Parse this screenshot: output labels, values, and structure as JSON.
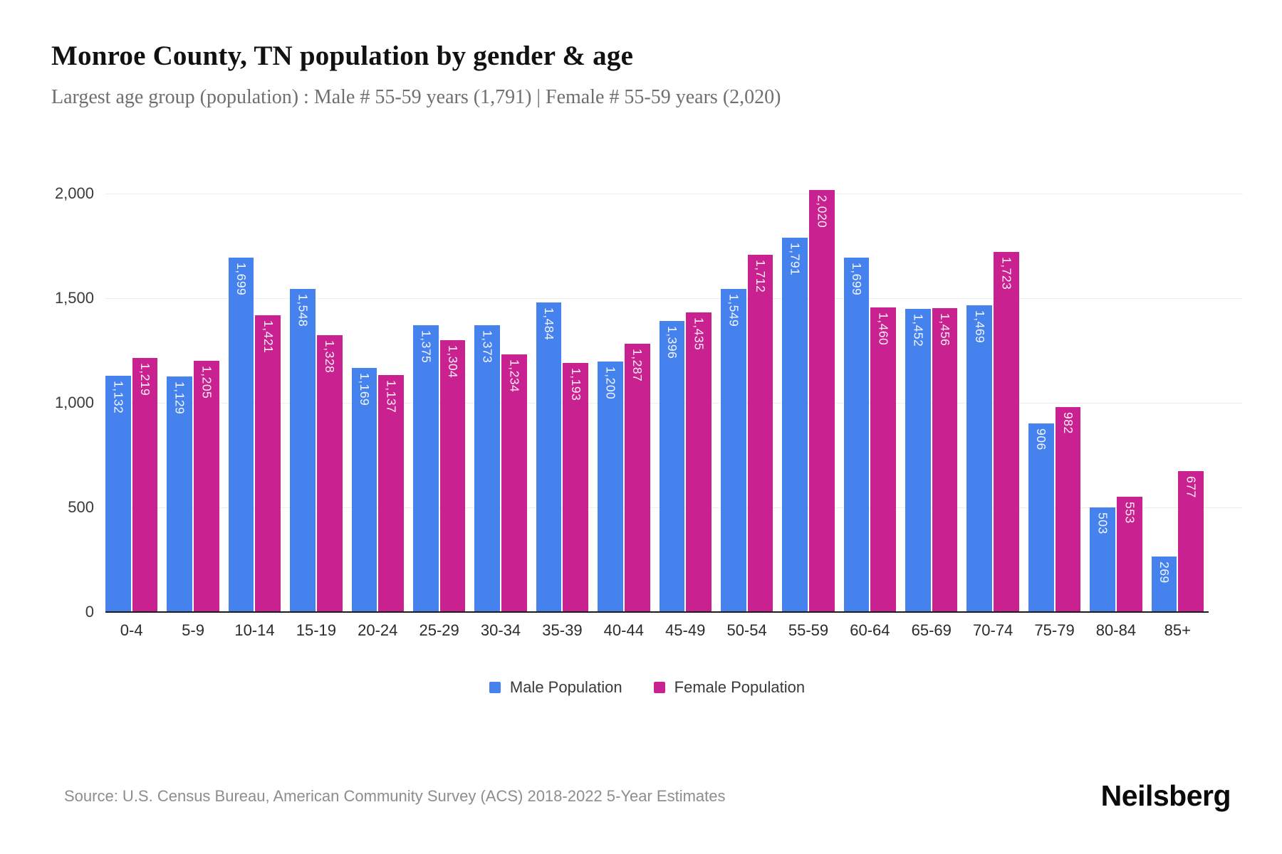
{
  "header": {
    "title": "Monroe County, TN population by gender & age",
    "subtitle": "Largest age group (population) : Male # 55-59 years (1,791) | Female # 55-59 years (2,020)"
  },
  "chart_data": {
    "type": "bar",
    "title": "Monroe County, TN population by gender & age",
    "categories": [
      "0-4",
      "5-9",
      "10-14",
      "15-19",
      "20-24",
      "25-29",
      "30-34",
      "35-39",
      "40-44",
      "45-49",
      "50-54",
      "55-59",
      "60-64",
      "65-69",
      "70-74",
      "75-79",
      "80-84",
      "85+"
    ],
    "series": [
      {
        "name": "Male Population",
        "key": "male",
        "color": "#4682EE",
        "values": [
          1132,
          1129,
          1699,
          1548,
          1169,
          1375,
          1373,
          1484,
          1200,
          1396,
          1549,
          1791,
          1699,
          1452,
          1469,
          906,
          503,
          269
        ]
      },
      {
        "name": "Female Population",
        "key": "female",
        "color": "#C92290",
        "values": [
          1219,
          1205,
          1421,
          1328,
          1137,
          1304,
          1234,
          1193,
          1287,
          1435,
          1712,
          2020,
          1460,
          1456,
          1723,
          982,
          553,
          677
        ]
      }
    ],
    "xlabel": "",
    "ylabel": "",
    "ylim": [
      0,
      2000
    ],
    "yticks": [
      0,
      500,
      1000,
      1500,
      2000
    ],
    "grid": true,
    "legend_position": "bottom",
    "bar_label_color": "#ffffff"
  },
  "footer": {
    "source": "Source: U.S. Census Bureau, American Community Survey (ACS) 2018-2022 5-Year Estimates",
    "brand": "Neilsberg"
  }
}
